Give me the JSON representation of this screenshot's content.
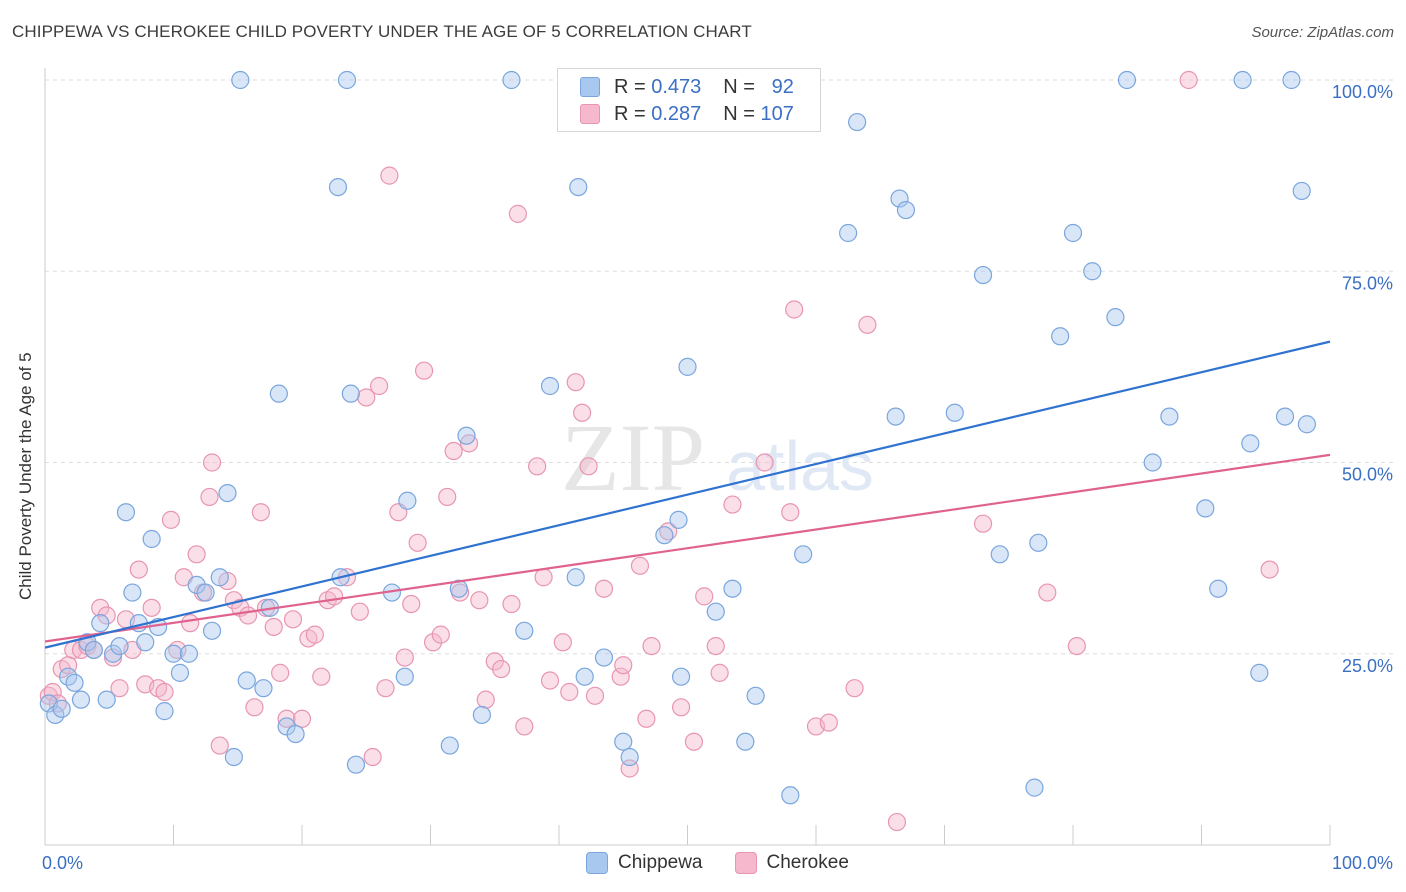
{
  "title": "CHIPPEWA VS CHEROKEE CHILD POVERTY UNDER THE AGE OF 5 CORRELATION CHART",
  "source": "Source: ZipAtlas.com",
  "watermark": {
    "zip": "ZIP",
    "atlas": "atlas"
  },
  "colors": {
    "chippewa_fill": "#a9c8f0",
    "chippewa_stroke": "#7aa6dd",
    "chippewa_line": "#2f72d0",
    "cherokee_fill": "#f5b8cc",
    "cherokee_stroke": "#e895b1",
    "cherokee_line": "#e0628f",
    "axis_text": "#3a6fc4",
    "grid": "#dddddd"
  },
  "legend_top": {
    "chippewa": {
      "r_label": "R =",
      "r_value": "0.473",
      "n_label": "N =",
      "n_value": "92"
    },
    "cherokee": {
      "r_label": "R =",
      "r_value": "0.287",
      "n_label": "N =",
      "n_value": "107"
    }
  },
  "legend_bottom": {
    "chippewa": "Chippewa",
    "cherokee": "Cherokee"
  },
  "chart_data": {
    "type": "scatter",
    "title": "CHIPPEWA VS CHEROKEE CHILD POVERTY UNDER THE AGE OF 5 CORRELATION CHART",
    "xlabel": "",
    "ylabel": "Child Poverty Under the Age of 5",
    "xlim": [
      0,
      100
    ],
    "ylim": [
      0,
      100
    ],
    "x_tick_labels": [
      "0.0%",
      "100.0%"
    ],
    "y_tick_labels": [
      "25.0%",
      "50.0%",
      "75.0%",
      "100.0%"
    ],
    "y_ticks": [
      25,
      50,
      75,
      100
    ],
    "grid": true,
    "legend_position": "top-center",
    "series": [
      {
        "name": "Chippewa",
        "r": 0.473,
        "n": 92,
        "trend": {
          "x": [
            0,
            100
          ],
          "y": [
            25.8,
            65.8
          ]
        },
        "points": [
          [
            0.3,
            18.5
          ],
          [
            0.8,
            17
          ],
          [
            1.3,
            17.8
          ],
          [
            1.8,
            22
          ],
          [
            2.3,
            21.2
          ],
          [
            2.8,
            19
          ],
          [
            3.3,
            26.5
          ],
          [
            3.8,
            25.5
          ],
          [
            4.3,
            29
          ],
          [
            4.8,
            19
          ],
          [
            5.3,
            25
          ],
          [
            5.8,
            26
          ],
          [
            6.3,
            43.5
          ],
          [
            6.8,
            33
          ],
          [
            7.3,
            29
          ],
          [
            7.8,
            26.5
          ],
          [
            8.3,
            40
          ],
          [
            8.8,
            28.5
          ],
          [
            9.3,
            17.5
          ],
          [
            10,
            25
          ],
          [
            10.5,
            22.5
          ],
          [
            11.2,
            25
          ],
          [
            11.8,
            34
          ],
          [
            12.5,
            33
          ],
          [
            13,
            28
          ],
          [
            13.6,
            35
          ],
          [
            14.2,
            46
          ],
          [
            14.7,
            11.5
          ],
          [
            15.7,
            21.5
          ],
          [
            17,
            20.5
          ],
          [
            17.5,
            31
          ],
          [
            18.2,
            59
          ],
          [
            18.8,
            15.5
          ],
          [
            19.5,
            14.5
          ],
          [
            15.2,
            100
          ],
          [
            22.8,
            86
          ],
          [
            23,
            35
          ],
          [
            23.5,
            100
          ],
          [
            23.8,
            59
          ],
          [
            24.2,
            10.5
          ],
          [
            27,
            33
          ],
          [
            28,
            22
          ],
          [
            28.2,
            45
          ],
          [
            31.5,
            13
          ],
          [
            32.2,
            33.5
          ],
          [
            32.8,
            53.5
          ],
          [
            34,
            17
          ],
          [
            36.3,
            100
          ],
          [
            37.3,
            28
          ],
          [
            39.3,
            60
          ],
          [
            41.3,
            35
          ],
          [
            41.5,
            86
          ],
          [
            42,
            22
          ],
          [
            43.5,
            24.5
          ],
          [
            45,
            13.5
          ],
          [
            45.5,
            11.5
          ],
          [
            48.2,
            40.5
          ],
          [
            49.3,
            42.5
          ],
          [
            49.5,
            22
          ],
          [
            50,
            62.5
          ],
          [
            52.2,
            30.5
          ],
          [
            53.5,
            33.5
          ],
          [
            54.5,
            13.5
          ],
          [
            55.3,
            19.5
          ],
          [
            58,
            6.5
          ],
          [
            59,
            38
          ],
          [
            62.5,
            80
          ],
          [
            63.2,
            94.5
          ],
          [
            66.2,
            56
          ],
          [
            66.5,
            84.5
          ],
          [
            67,
            83
          ],
          [
            70.8,
            56.5
          ],
          [
            73,
            74.5
          ],
          [
            74.3,
            38
          ],
          [
            77,
            7.5
          ],
          [
            77.3,
            39.5
          ],
          [
            79,
            66.5
          ],
          [
            80,
            80
          ],
          [
            81.5,
            75
          ],
          [
            83.3,
            69
          ],
          [
            84.2,
            100
          ],
          [
            86.2,
            50
          ],
          [
            87.5,
            56
          ],
          [
            90.3,
            44
          ],
          [
            91.3,
            33.5
          ],
          [
            93.2,
            100
          ],
          [
            93.8,
            52.5
          ],
          [
            94.5,
            22.5
          ],
          [
            96.5,
            56
          ],
          [
            97,
            100
          ],
          [
            97.8,
            85.5
          ],
          [
            98.2,
            55
          ]
        ]
      },
      {
        "name": "Cherokee",
        "r": 0.287,
        "n": 107,
        "trend": {
          "x": [
            0,
            100
          ],
          "y": [
            26.6,
            51
          ]
        },
        "points": [
          [
            0.3,
            19.5
          ],
          [
            0.6,
            20
          ],
          [
            1,
            18.5
          ],
          [
            1.3,
            23
          ],
          [
            1.8,
            23.5
          ],
          [
            2.2,
            25.5
          ],
          [
            2.8,
            25.5
          ],
          [
            3.3,
            26
          ],
          [
            3.8,
            25.5
          ],
          [
            4.3,
            31
          ],
          [
            4.8,
            30
          ],
          [
            5.3,
            24.5
          ],
          [
            5.8,
            20.5
          ],
          [
            6.3,
            29.5
          ],
          [
            6.8,
            25.5
          ],
          [
            7.3,
            36
          ],
          [
            7.8,
            21
          ],
          [
            8.3,
            31
          ],
          [
            8.8,
            20.5
          ],
          [
            9.3,
            20
          ],
          [
            9.8,
            42.5
          ],
          [
            10.3,
            25.5
          ],
          [
            10.8,
            35
          ],
          [
            11.3,
            29
          ],
          [
            11.8,
            38
          ],
          [
            12.3,
            33
          ],
          [
            12.8,
            45.5
          ],
          [
            13,
            50
          ],
          [
            13.6,
            13
          ],
          [
            14.2,
            34.5
          ],
          [
            14.7,
            32
          ],
          [
            15.2,
            31
          ],
          [
            15.8,
            30
          ],
          [
            16.3,
            18
          ],
          [
            16.8,
            43.5
          ],
          [
            17.2,
            31
          ],
          [
            17.8,
            28.5
          ],
          [
            18.3,
            22.5
          ],
          [
            18.8,
            16.5
          ],
          [
            19.3,
            29.5
          ],
          [
            20,
            16.5
          ],
          [
            20.5,
            27
          ],
          [
            21,
            27.5
          ],
          [
            21.5,
            22
          ],
          [
            22,
            32
          ],
          [
            22.5,
            32.5
          ],
          [
            23.5,
            35
          ],
          [
            24.5,
            30.5
          ],
          [
            25,
            58.5
          ],
          [
            25.5,
            11.5
          ],
          [
            26,
            60
          ],
          [
            26.5,
            20.5
          ],
          [
            26.8,
            87.5
          ],
          [
            27.5,
            43.5
          ],
          [
            28,
            24.5
          ],
          [
            28.5,
            31.5
          ],
          [
            29,
            39.5
          ],
          [
            29.5,
            62
          ],
          [
            30.2,
            26.5
          ],
          [
            30.8,
            27.5
          ],
          [
            31.3,
            45.5
          ],
          [
            31.8,
            51.5
          ],
          [
            32.3,
            33
          ],
          [
            33,
            52.5
          ],
          [
            33.8,
            32
          ],
          [
            34.3,
            19
          ],
          [
            35,
            24
          ],
          [
            35.5,
            23
          ],
          [
            36.3,
            31.5
          ],
          [
            36.8,
            82.5
          ],
          [
            37.3,
            15.5
          ],
          [
            38.3,
            49.5
          ],
          [
            38.8,
            35
          ],
          [
            39.3,
            21.5
          ],
          [
            40.3,
            26.5
          ],
          [
            40.8,
            20
          ],
          [
            41.3,
            60.5
          ],
          [
            41.8,
            56.5
          ],
          [
            42.3,
            49.5
          ],
          [
            42.8,
            19.5
          ],
          [
            43.5,
            33.5
          ],
          [
            44.8,
            22
          ],
          [
            45,
            23.5
          ],
          [
            45.5,
            10
          ],
          [
            46.3,
            36.5
          ],
          [
            46.8,
            16.5
          ],
          [
            47.2,
            26
          ],
          [
            48.5,
            41
          ],
          [
            49.5,
            18
          ],
          [
            50.5,
            13.5
          ],
          [
            51.3,
            32.5
          ],
          [
            52.2,
            26
          ],
          [
            52.5,
            22.5
          ],
          [
            53.5,
            44.5
          ],
          [
            56,
            50
          ],
          [
            58,
            43.5
          ],
          [
            58.3,
            70
          ],
          [
            60,
            15.5
          ],
          [
            61,
            16
          ],
          [
            64,
            68
          ],
          [
            66.3,
            3
          ],
          [
            73,
            42
          ],
          [
            78,
            33
          ],
          [
            80.3,
            26
          ],
          [
            89,
            100
          ],
          [
            95.3,
            36
          ],
          [
            63,
            20.5
          ]
        ]
      }
    ]
  }
}
